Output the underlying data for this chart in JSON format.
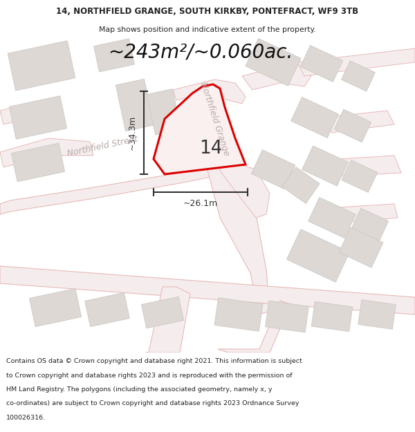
{
  "title": "14, NORTHFIELD GRANGE, SOUTH KIRKBY, PONTEFRACT, WF9 3TB",
  "subtitle": "Map shows position and indicative extent of the property.",
  "area_text": "~243m²/~0.060ac.",
  "property_number": "14",
  "measurement_vertical": "~34.3m",
  "measurement_horizontal": "~26.1m",
  "street_label_1": "Northfield Street",
  "street_label_2": "Northfield Grange",
  "footer_lines": [
    "Contains OS data © Crown copyright and database right 2021. This information is subject",
    "to Crown copyright and database rights 2023 and is reproduced with the permission of",
    "HM Land Registry. The polygons (including the associated geometry, namely x, y",
    "co-ordinates) are subject to Crown copyright and database rights 2023 Ordnance Survey",
    "100026316."
  ],
  "map_bg": "#f7f3f0",
  "road_outline_color": "#e8b8b8",
  "road_fill_color": "#f5eded",
  "building_fill": "#ddd8d4",
  "building_edge": "#ccc8c4",
  "property_fill": "#faf0f0",
  "property_edge": "#dd0000",
  "dim_color": "#333333",
  "street_color": "#bbaaaa",
  "white": "#ffffff",
  "text_color": "#222222"
}
